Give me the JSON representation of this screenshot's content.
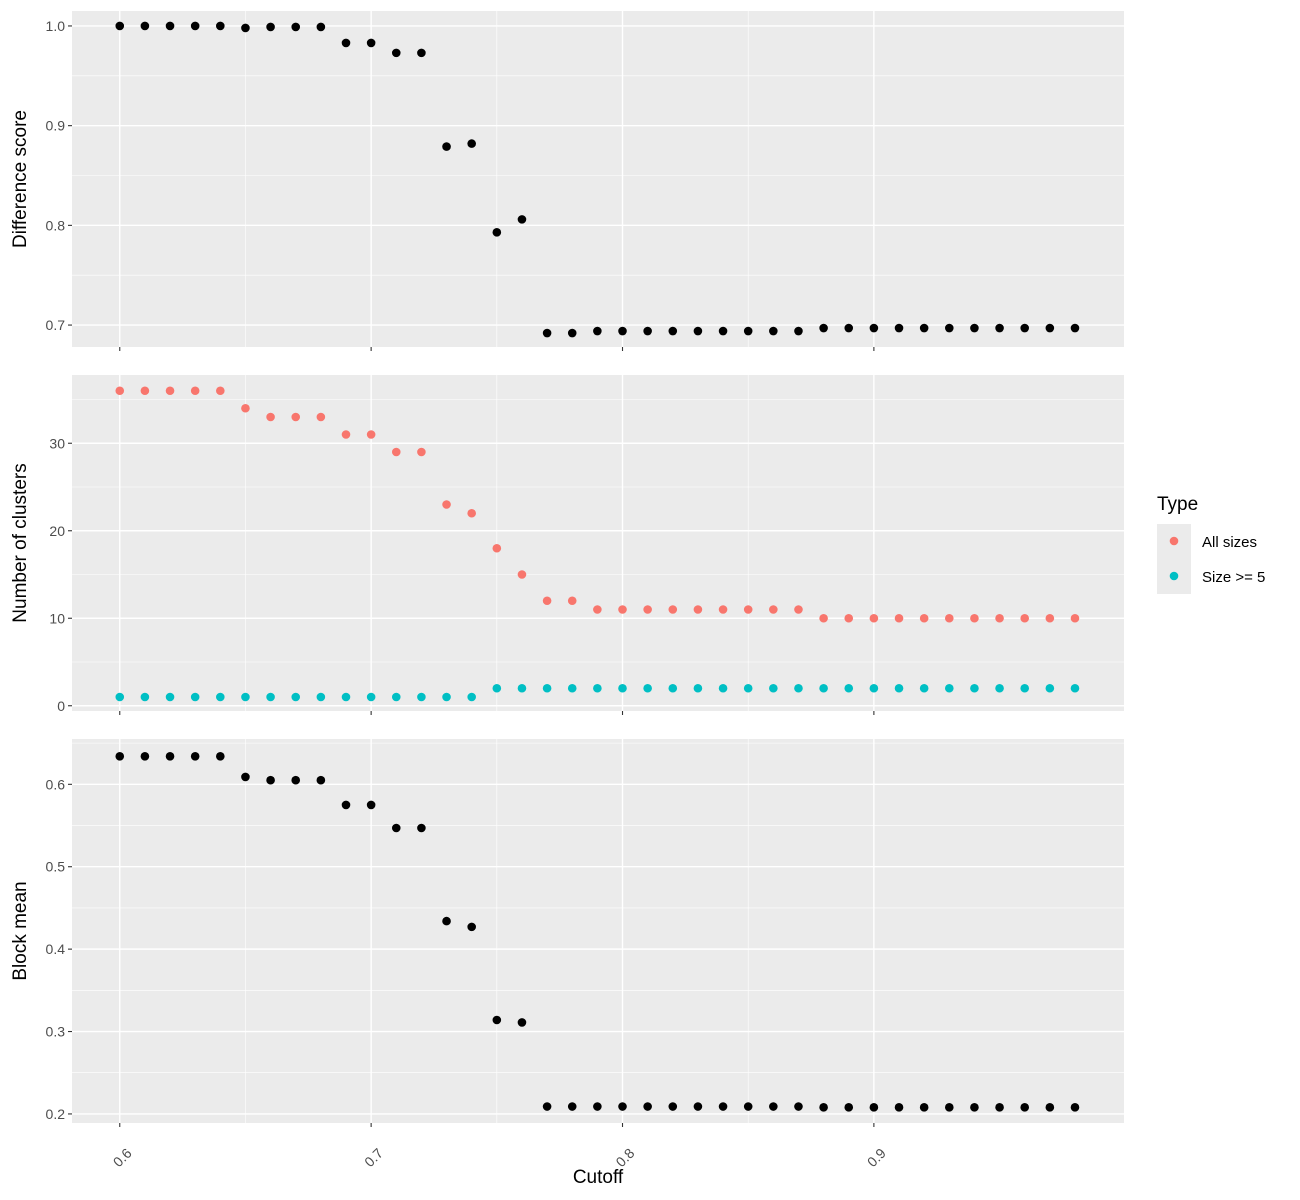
{
  "chart_data": {
    "type": "scatter",
    "x": [
      0.6,
      0.61,
      0.62,
      0.63,
      0.64,
      0.65,
      0.66,
      0.67,
      0.68,
      0.69,
      0.7,
      0.71,
      0.72,
      0.73,
      0.74,
      0.75,
      0.76,
      0.77,
      0.78,
      0.79,
      0.8,
      0.81,
      0.82,
      0.83,
      0.84,
      0.85,
      0.86,
      0.87,
      0.88,
      0.89,
      0.9,
      0.91,
      0.92,
      0.93,
      0.94,
      0.95,
      0.96,
      0.97,
      0.98
    ],
    "xlabel": "Cutoff",
    "x_ticks": [
      "0.6",
      "0.7",
      "0.8",
      "0.9"
    ],
    "xlim": [
      0.581,
      0.9995
    ],
    "grid": true,
    "facets": [
      {
        "ylabel": "Difference score",
        "ylim": [
          0.678,
          1.015
        ],
        "y_ticks": [
          "1.0",
          "0.9",
          "0.8",
          "0.7"
        ],
        "y_tick_values": [
          1.0,
          0.9,
          0.8,
          0.7
        ],
        "series": [
          {
            "values": [
              1.0,
              1.0,
              1.0,
              1.0,
              1.0,
              0.998,
              0.999,
              0.999,
              0.999,
              0.983,
              0.983,
              0.973,
              0.973,
              0.879,
              0.882,
              0.793,
              0.806,
              0.692,
              0.692,
              0.694,
              0.694,
              0.694,
              0.694,
              0.694,
              0.694,
              0.694,
              0.694,
              0.694,
              0.697,
              0.697,
              0.697,
              0.697,
              0.697,
              0.697,
              0.697,
              0.697,
              0.697,
              0.697,
              0.697
            ],
            "color": "#000000"
          }
        ]
      },
      {
        "ylabel": "Number of clusters",
        "ylim": [
          -0.6,
          37.8
        ],
        "y_ticks": [
          "30",
          "20",
          "10",
          "0"
        ],
        "y_tick_values": [
          30,
          20,
          10,
          0
        ],
        "series": [
          {
            "name": "All sizes",
            "color": "#F8766D",
            "values": [
              36,
              36,
              36,
              36,
              36,
              34,
              33,
              33,
              33,
              31,
              31,
              29,
              29,
              23,
              22,
              18,
              15,
              12,
              12,
              11,
              11,
              11,
              11,
              11,
              11,
              11,
              11,
              11,
              10,
              10,
              10,
              10,
              10,
              10,
              10,
              10,
              10,
              10,
              10
            ]
          },
          {
            "name": "Size >= 5",
            "color": "#00BFC4",
            "values": [
              1,
              1,
              1,
              1,
              1,
              1,
              1,
              1,
              1,
              1,
              1,
              1,
              1,
              1,
              1,
              2,
              2,
              2,
              2,
              2,
              2,
              2,
              2,
              2,
              2,
              2,
              2,
              2,
              2,
              2,
              2,
              2,
              2,
              2,
              2,
              2,
              2,
              2,
              2
            ]
          }
        ]
      },
      {
        "ylabel": "Block mean",
        "ylim": [
          0.189,
          0.655
        ],
        "y_ticks": [
          "0.6",
          "0.5",
          "0.4",
          "0.3",
          "0.2"
        ],
        "y_tick_values": [
          0.6,
          0.5,
          0.4,
          0.3,
          0.2
        ],
        "series": [
          {
            "values": [
              0.634,
              0.634,
              0.634,
              0.634,
              0.634,
              0.609,
              0.605,
              0.605,
              0.605,
              0.575,
              0.575,
              0.547,
              0.547,
              0.434,
              0.427,
              0.314,
              0.311,
              0.209,
              0.209,
              0.209,
              0.209,
              0.209,
              0.209,
              0.209,
              0.209,
              0.209,
              0.209,
              0.209,
              0.208,
              0.208,
              0.208,
              0.208,
              0.208,
              0.208,
              0.208,
              0.208,
              0.208,
              0.208,
              0.208
            ],
            "color": "#000000"
          }
        ]
      }
    ],
    "legend": {
      "title": "Type",
      "placement": "right",
      "items": [
        {
          "label": "All sizes",
          "color": "#F8766D"
        },
        {
          "label": "Size >= 5",
          "color": "#00BFC4"
        }
      ]
    }
  }
}
